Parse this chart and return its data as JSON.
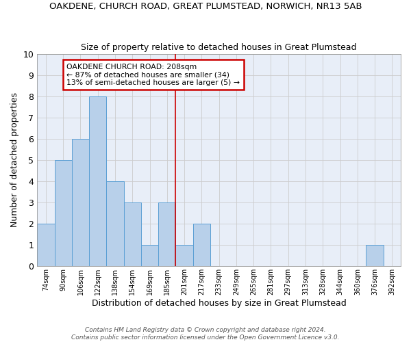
{
  "title": "OAKDENE, CHURCH ROAD, GREAT PLUMSTEAD, NORWICH, NR13 5AB",
  "subtitle": "Size of property relative to detached houses in Great Plumstead",
  "xlabel": "Distribution of detached houses by size in Great Plumstead",
  "ylabel": "Number of detached properties",
  "categories": [
    "74sqm",
    "90sqm",
    "106sqm",
    "122sqm",
    "138sqm",
    "154sqm",
    "169sqm",
    "185sqm",
    "201sqm",
    "217sqm",
    "233sqm",
    "249sqm",
    "265sqm",
    "281sqm",
    "297sqm",
    "313sqm",
    "328sqm",
    "344sqm",
    "360sqm",
    "376sqm",
    "392sqm"
  ],
  "bar_values": [
    2,
    5,
    6,
    8,
    4,
    3,
    1,
    3,
    1,
    2,
    0,
    0,
    0,
    0,
    0,
    0,
    0,
    0,
    0,
    1,
    0
  ],
  "bar_color": "#b8d0ea",
  "bar_edge_color": "#5a9fd4",
  "annotation_title": "OAKDENE CHURCH ROAD: 208sqm",
  "annotation_line1": "← 87% of detached houses are smaller (34)",
  "annotation_line2": "13% of semi-detached houses are larger (5) →",
  "annotation_box_color": "#ffffff",
  "annotation_box_edge_color": "#cc0000",
  "ylim": [
    0,
    10
  ],
  "yticks": [
    0,
    1,
    2,
    3,
    4,
    5,
    6,
    7,
    8,
    9,
    10
  ],
  "grid_color": "#cccccc",
  "background_color": "#e8eef8",
  "footer_line1": "Contains HM Land Registry data © Crown copyright and database right 2024.",
  "footer_line2": "Contains public sector information licensed under the Open Government Licence v3.0."
}
